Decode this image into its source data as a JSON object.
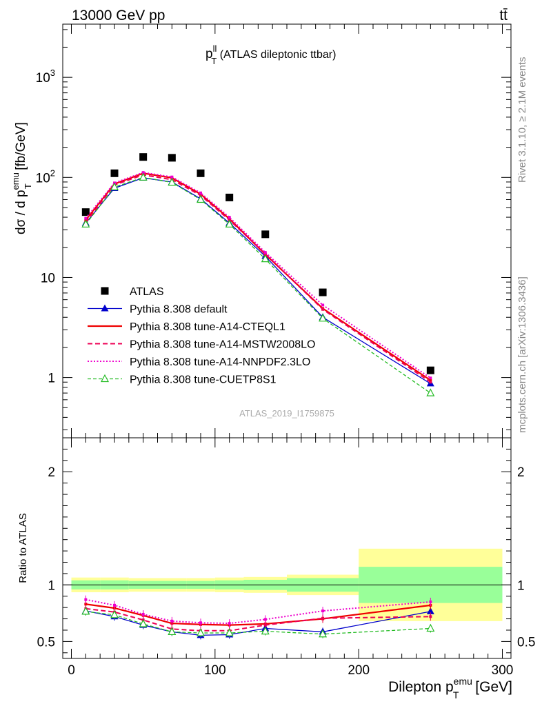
{
  "header": {
    "left_label": "13000 GeV pp",
    "right_label": "tt̄"
  },
  "side_labels": {
    "rivet": "Rivet 3.1.10, ≥ 2.1M events",
    "mcplots": "mcplots.cern.ch [arXiv:1306.3436]"
  },
  "chart_data": [
    {
      "type": "line",
      "title_main": "p",
      "title_sup": "ll",
      "title_sub": "T",
      "title_rest": " (ATLAS dileptonic ttbar)",
      "watermark": "ATLAS_2019_I1759875",
      "ylabel_main": "dσ / d p",
      "ylabel_sup": "emu",
      "ylabel_sub": "T",
      "ylabel_rest": " [fb/GeV]",
      "yscale": "log",
      "ylim": [
        0.25,
        3400
      ],
      "xlim": [
        -6,
        306
      ],
      "y_tick_labels": [
        {
          "value": 1000,
          "base": "10",
          "exp": "3"
        },
        {
          "value": 100,
          "base": "10",
          "exp": "2"
        },
        {
          "value": 10,
          "base": "10",
          "exp": ""
        },
        {
          "value": 1,
          "base": "1",
          "exp": ""
        }
      ],
      "legend_position": "bottom-left",
      "bin_edges": [
        0,
        20,
        40,
        60,
        80,
        100,
        120,
        150,
        200,
        300
      ],
      "x": [
        10,
        30,
        50,
        70,
        90,
        110,
        135,
        175,
        250
      ],
      "series": [
        {
          "name": "ATLAS",
          "color": "#000000",
          "style": "data",
          "values": [
            45,
            110,
            160,
            157,
            110,
            63,
            27,
            7.1,
            1.18
          ]
        },
        {
          "name": "Pythia 8.308 default",
          "color": "#0000cc",
          "style": "solid-triangle",
          "values": [
            35,
            78,
            99,
            90,
            61,
            35,
            16.3,
            4.0,
            0.87
          ]
        },
        {
          "name": "Pythia 8.308 tune-A14-CTEQL1",
          "color": "#ee0000",
          "style": "solid-thick",
          "values": [
            37.5,
            86,
            110,
            99,
            68,
            38.5,
            17.0,
            4.9,
            0.94
          ]
        },
        {
          "name": "Pythia 8.308 tune-A14-MSTW2008LO",
          "color": "#ee0055",
          "style": "dashed",
          "values": [
            35.5,
            84,
            106,
            95,
            66,
            37.5,
            17.2,
            4.8,
            0.9
          ]
        },
        {
          "name": "Pythia 8.308 tune-A14-NNPDF2.3LO",
          "color": "#ee00cc",
          "style": "dotted",
          "values": [
            39,
            88,
            112,
            101,
            70,
            40,
            17.8,
            5.3,
            0.99
          ]
        },
        {
          "name": "Pythia 8.308 tune-CUETP8S1",
          "color": "#22bb22",
          "style": "dashed-open-triangle",
          "values": [
            34,
            80,
            100,
            89,
            60,
            34,
            15.3,
            3.9,
            0.7
          ]
        }
      ]
    },
    {
      "type": "line",
      "ylabel": "Ratio to ATLAS",
      "xlabel_main": "Dilepton p",
      "xlabel_sup": "emu",
      "xlabel_sub": "T",
      "xlabel_rest": " [GeV]",
      "ylim": [
        0.35,
        2.3
      ],
      "xlim": [
        -6,
        306
      ],
      "y_tick_labels": [
        "0.5",
        "1",
        "2"
      ],
      "x_tick_labels": [
        "0",
        "100",
        "200",
        "300"
      ],
      "bin_edges": [
        0,
        20,
        40,
        60,
        80,
        100,
        120,
        150,
        200,
        300
      ],
      "band_inner": [
        0.04,
        0.04,
        0.035,
        0.035,
        0.035,
        0.04,
        0.045,
        0.06,
        0.16
      ],
      "band_outer": [
        0.065,
        0.065,
        0.06,
        0.06,
        0.06,
        0.065,
        0.07,
        0.09,
        0.32
      ],
      "x": [
        10,
        30,
        50,
        70,
        90,
        110,
        135,
        175,
        250
      ],
      "series": [
        {
          "name": "Pythia 8.308 default",
          "values": [
            0.77,
            0.72,
            0.645,
            0.585,
            0.555,
            0.56,
            0.615,
            0.585,
            0.765
          ]
        },
        {
          "name": "Pythia 8.308 tune-A14-CTEQL1",
          "values": [
            0.83,
            0.795,
            0.73,
            0.66,
            0.65,
            0.645,
            0.655,
            0.7,
            0.82
          ]
        },
        {
          "name": "Pythia 8.308 tune-A14-MSTW2008LO",
          "values": [
            0.79,
            0.76,
            0.69,
            0.61,
            0.595,
            0.595,
            0.645,
            0.705,
            0.72
          ]
        },
        {
          "name": "Pythia 8.308 tune-A14-NNPDF2.3LO",
          "values": [
            0.87,
            0.82,
            0.74,
            0.68,
            0.665,
            0.66,
            0.695,
            0.77,
            0.85
          ]
        },
        {
          "name": "Pythia 8.308 tune-CUETP8S1",
          "values": [
            0.765,
            0.735,
            0.655,
            0.585,
            0.575,
            0.575,
            0.59,
            0.565,
            0.615
          ]
        }
      ]
    }
  ]
}
